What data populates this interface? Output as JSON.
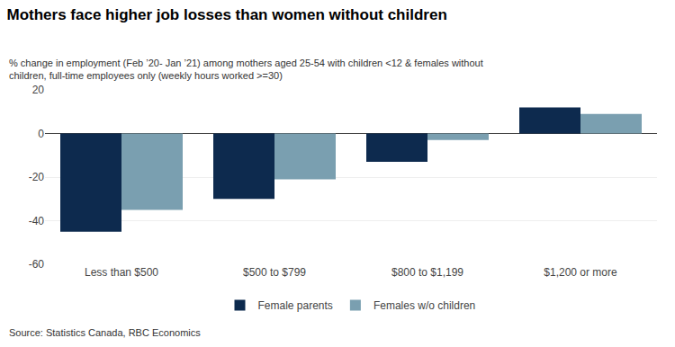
{
  "chart_data": {
    "type": "bar",
    "title": "Mothers face higher job losses than women without children",
    "subtitle": "% change in employment (Feb ’20- Jan ’21) among mothers aged 25-54 with children <12 & females without\nchildren, full-time employees only (weekly hours worked >=30)",
    "source": "Source: Statistics Canada, RBC Economics",
    "categories": [
      "Less than $500",
      "$500 to $799",
      "$800 to $1,199",
      "$1,200 or more"
    ],
    "series": [
      {
        "name": "Female parents",
        "color": "#0d2a4e",
        "values": [
          -45,
          -30,
          -13,
          12
        ]
      },
      {
        "name": "Females w/o children",
        "color": "#7a9fb0",
        "values": [
          -35,
          -21,
          -3,
          9
        ]
      }
    ],
    "ylim": [
      -60,
      20
    ],
    "yticks": [
      -60,
      -40,
      -20,
      0,
      20
    ],
    "grid": true,
    "legend": "bottom"
  }
}
